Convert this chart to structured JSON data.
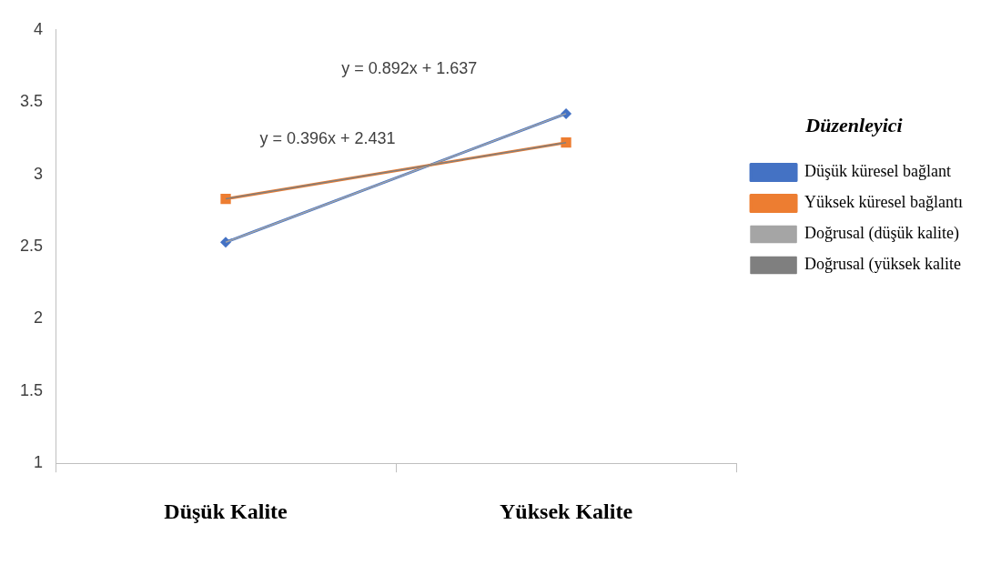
{
  "chart_data": {
    "type": "line",
    "categories": [
      "Düşük Kalite",
      "Yüksek Kalite"
    ],
    "series": [
      {
        "name": "Düşük küresel bağlant",
        "color": "#4472c4",
        "values": [
          2.53,
          3.42
        ],
        "marker": "diamond"
      },
      {
        "name": "Yüksek küresel bağlantı",
        "color": "#ed7d31",
        "values": [
          2.83,
          3.22
        ],
        "marker": "square"
      },
      {
        "name": "Doğrusal (düşük kalite)",
        "color": "#a5a5a5",
        "values": [
          2.53,
          3.42
        ],
        "marker": "none"
      },
      {
        "name": "Doğrusal (yüksek kalite",
        "color": "#7f7f7f",
        "values": [
          2.83,
          3.22
        ],
        "marker": "none"
      }
    ],
    "ylim": [
      1,
      4
    ],
    "yticks": [
      1,
      1.5,
      2,
      2.5,
      3,
      3.5,
      4
    ],
    "grid": false,
    "legend": "right",
    "legend_title": "Düzenleyici",
    "annotations": [
      "y = 0.892x + 1.637",
      "y = 0.396x + 2.431"
    ]
  }
}
